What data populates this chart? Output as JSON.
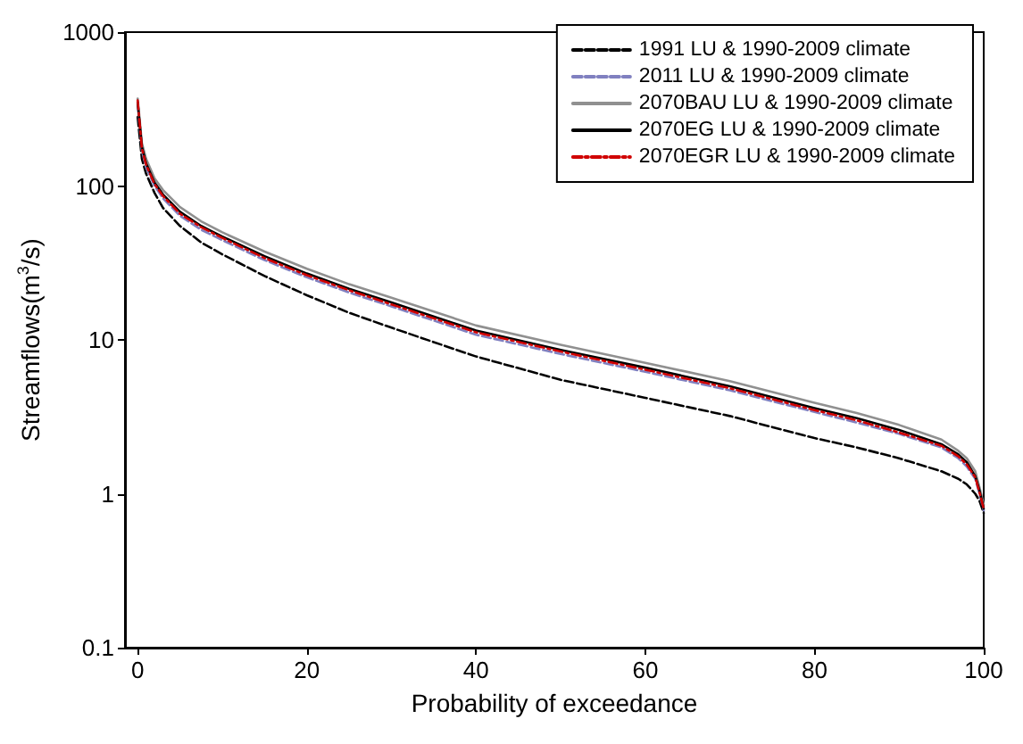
{
  "chart_data": {
    "type": "line",
    "xlabel": "Probability of exceedance",
    "ylabel": "Streamflows(m$^{3}$/s)",
    "x": [
      0,
      0.5,
      1,
      2,
      3,
      5,
      7.5,
      10,
      15,
      20,
      25,
      30,
      40,
      50,
      60,
      70,
      80,
      85,
      90,
      95,
      97,
      98,
      99,
      99.5,
      100
    ],
    "series": [
      {
        "name": "1991 LU & 1990-2009 climate",
        "color": "#000000",
        "line_style": "dashed",
        "values": [
          280,
          150,
          120,
          90,
          72,
          55,
          43,
          36,
          26,
          19.5,
          15,
          12,
          7.8,
          5.5,
          4.2,
          3.2,
          2.3,
          2.0,
          1.7,
          1.4,
          1.25,
          1.15,
          1.0,
          0.9,
          0.75
        ]
      },
      {
        "name": "2011 LU & 1990-2009 climate",
        "color": "#8080c0",
        "line_style": "dashed",
        "values": [
          340,
          170,
          132,
          100,
          83,
          64,
          52,
          44.5,
          33,
          25.5,
          20.3,
          16.5,
          10.8,
          8.1,
          6.2,
          4.7,
          3.4,
          2.9,
          2.45,
          2.0,
          1.7,
          1.5,
          1.25,
          1.0,
          0.78
        ]
      },
      {
        "name": "2070BAU LU & 1990-2009 climate",
        "color": "#909090",
        "line_style": "solid",
        "values": [
          370,
          190,
          150,
          112,
          94,
          73,
          59,
          50,
          37.5,
          29,
          23,
          18.8,
          12.4,
          9.3,
          7.1,
          5.4,
          3.9,
          3.35,
          2.8,
          2.25,
          1.9,
          1.7,
          1.4,
          1.1,
          0.85
        ]
      },
      {
        "name": "2070EG LU & 1990-2009 climate",
        "color": "#000000",
        "line_style": "solid",
        "values": [
          350,
          180,
          140,
          105,
          88,
          68,
          55,
          47,
          35,
          27,
          21.5,
          17.5,
          11.5,
          8.6,
          6.6,
          5,
          3.6,
          3.1,
          2.6,
          2.1,
          1.8,
          1.6,
          1.3,
          1.05,
          0.8
        ]
      },
      {
        "name": "2070EGR LU & 1990-2009 climate",
        "color": "#d00000",
        "line_style": "dashdot",
        "values": [
          360,
          175,
          137,
          103,
          86,
          66,
          54,
          46,
          34,
          26.3,
          21,
          17,
          11.2,
          8.4,
          6.4,
          4.85,
          3.5,
          3.0,
          2.5,
          2.05,
          1.75,
          1.55,
          1.28,
          1.02,
          0.8
        ]
      }
    ],
    "xlim": [
      -1.5,
      100
    ],
    "xticks": [
      0,
      20,
      40,
      60,
      80,
      100
    ],
    "ylim": [
      0.1,
      1000
    ],
    "yticks": [
      0.1,
      1,
      10,
      100,
      1000
    ],
    "log": "y",
    "grid": false,
    "legend": "top right",
    "marker": "none"
  }
}
